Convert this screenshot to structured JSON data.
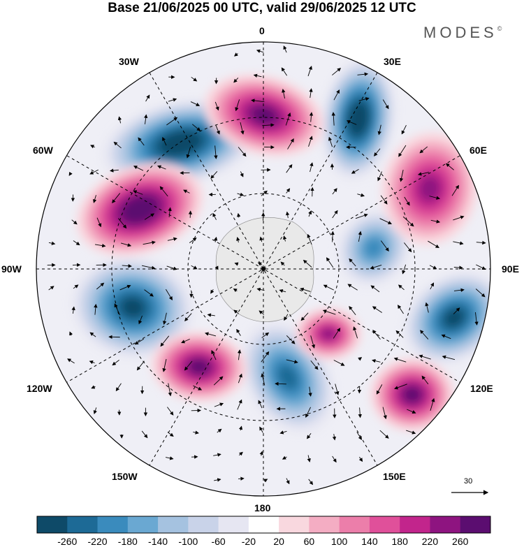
{
  "title": "Base 21/06/2025 00 UTC, valid 29/06/2025 12 UTC",
  "logo": "MODES",
  "logo_mark": "©",
  "lon_labels": {
    "north": "0",
    "n30w": "30W",
    "n30e": "30E",
    "n60w": "60W",
    "n60e": "60E",
    "n90w": "90W",
    "n90e": "90E",
    "n120w": "120W",
    "n120e": "120E",
    "n150w": "150W",
    "n150e": "150E",
    "south": "180"
  },
  "reference_vector": {
    "value": "30"
  },
  "colorbar": {
    "colors": [
      "#0e4a68",
      "#1d6a96",
      "#3a8bbd",
      "#6aa8d2",
      "#a5c2e0",
      "#c9d3e9",
      "#e6e6f2",
      "#ffffff",
      "#f9d8df",
      "#f4adc3",
      "#ec7eaa",
      "#e0509a",
      "#c2258c",
      "#8e1480",
      "#5b0d70"
    ],
    "labels": [
      "-260",
      "-220",
      "-180",
      "-140",
      "-100",
      "-60",
      "-20",
      "20",
      "60",
      "100",
      "140",
      "180",
      "220",
      "260"
    ]
  },
  "anomaly_centers": [
    {
      "name": "low-west-atlantic",
      "level": -260
    },
    {
      "name": "low-scandinavia",
      "level": -260
    },
    {
      "name": "low-east-siberia",
      "level": -220
    },
    {
      "name": "low-alaska",
      "level": -220
    },
    {
      "name": "low-pacific",
      "level": -180
    },
    {
      "name": "low-central",
      "level": -140
    },
    {
      "name": "high-greenland",
      "level": 220
    },
    {
      "name": "high-canada-west",
      "level": 260
    },
    {
      "name": "high-urals",
      "level": 180
    },
    {
      "name": "high-pacific-n",
      "level": 220
    },
    {
      "name": "high-japan",
      "level": 220
    },
    {
      "name": "high-siberia",
      "level": 180
    }
  ]
}
